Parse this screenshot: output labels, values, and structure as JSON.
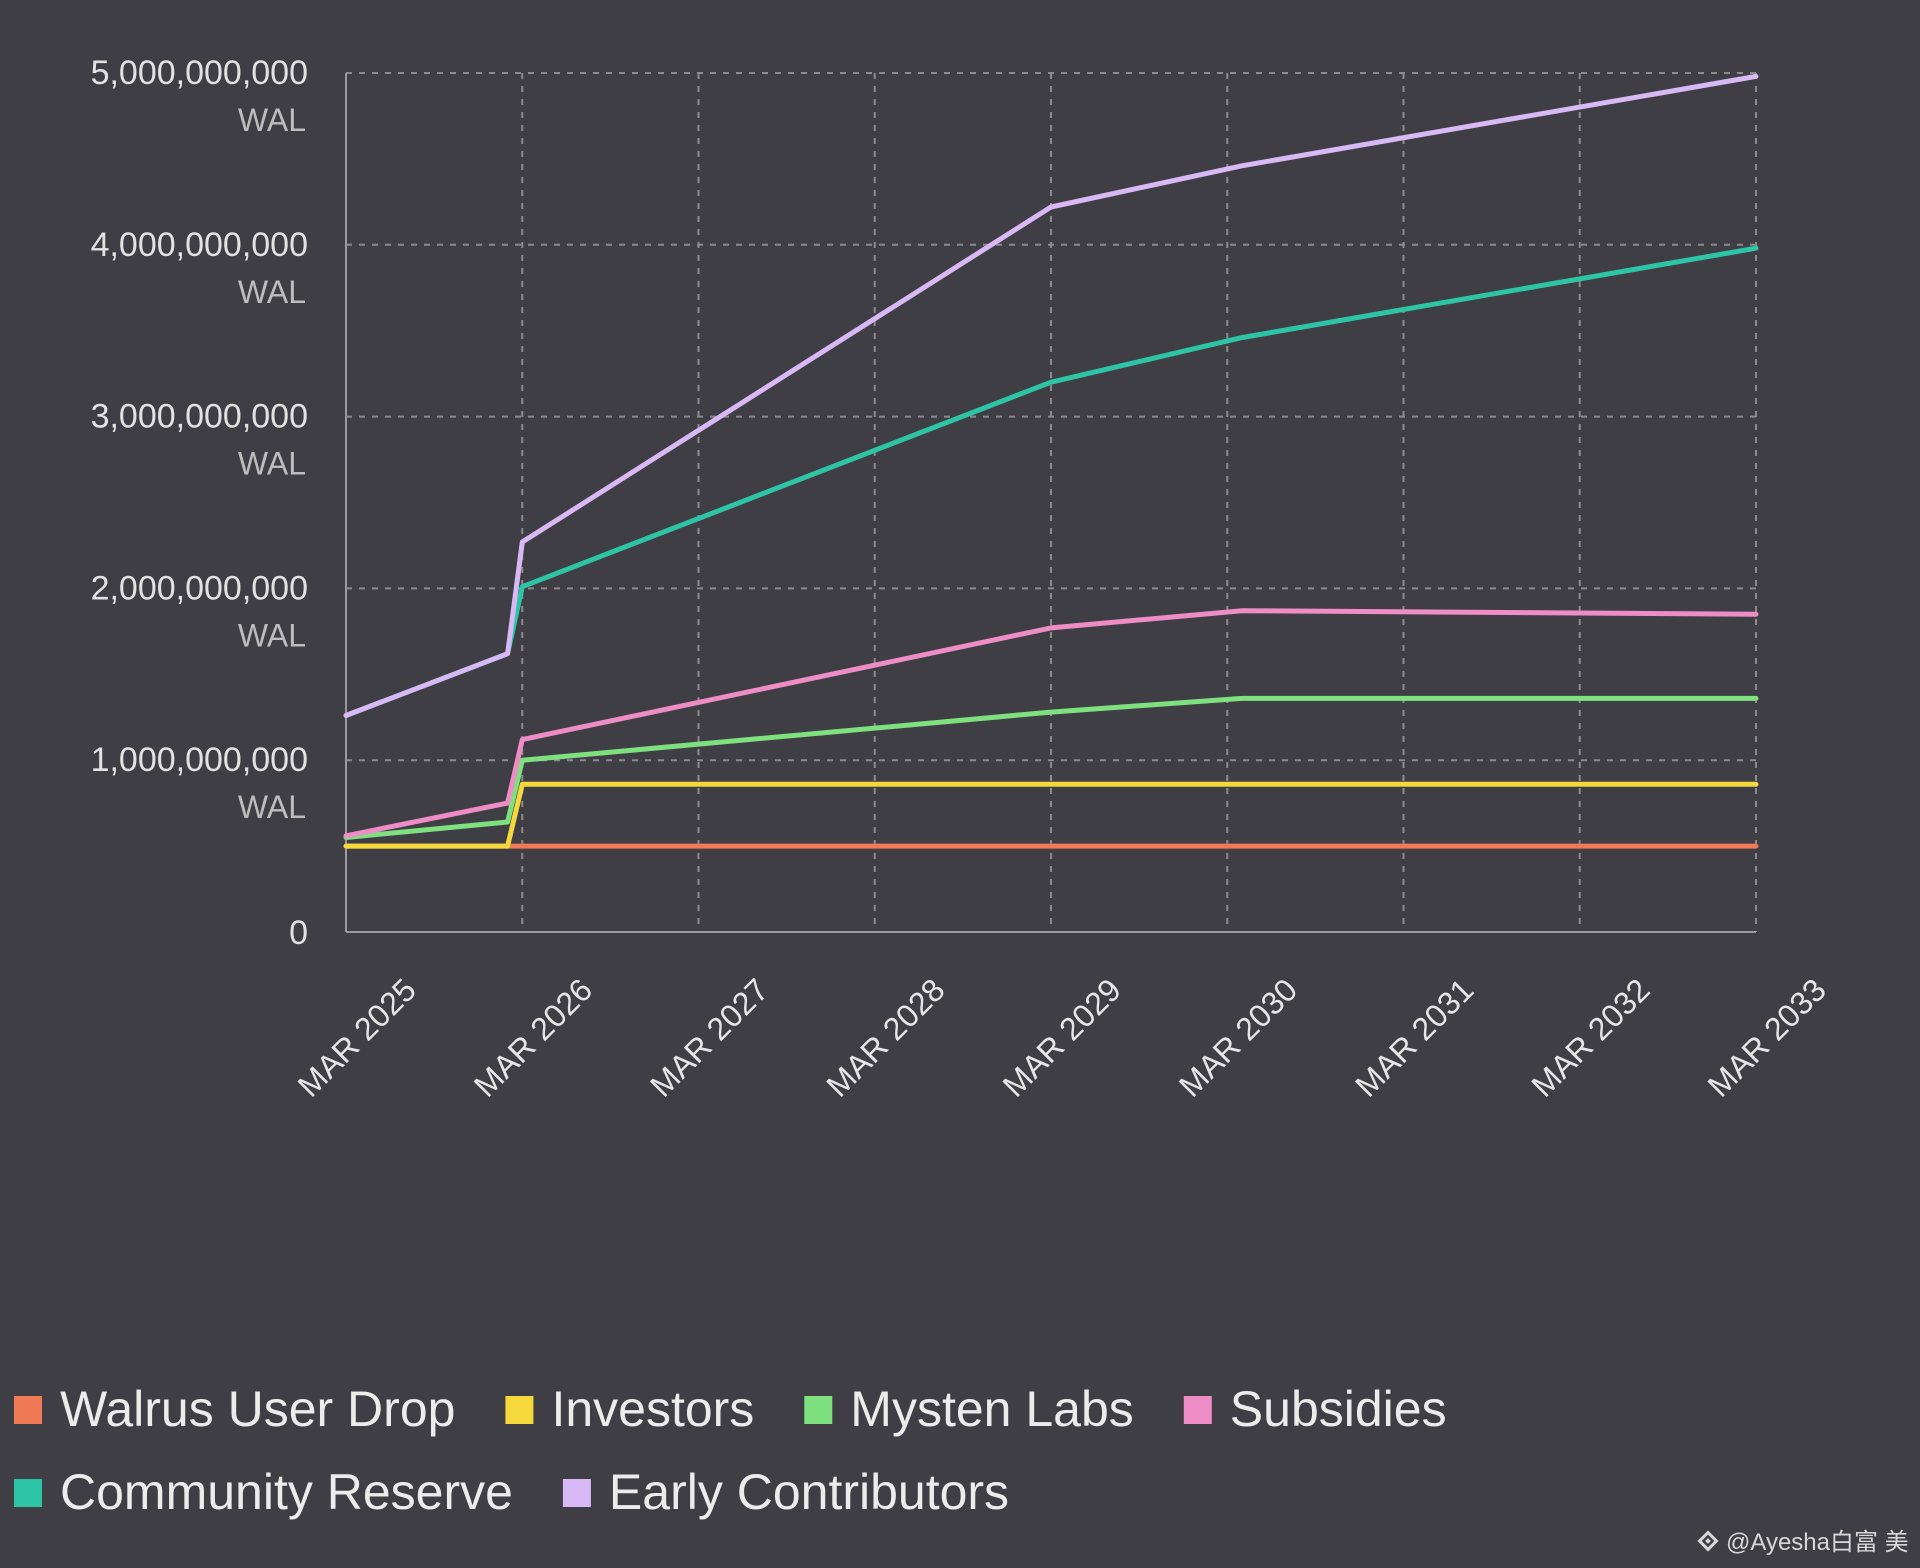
{
  "chart_data": {
    "type": "line",
    "x_ticks": [
      "MAR 2025",
      "MAR 2026",
      "MAR 2027",
      "MAR 2028",
      "MAR 2029",
      "MAR 2030",
      "MAR 2031",
      "MAR 2032",
      "MAR 2033"
    ],
    "y_ticks": [
      {
        "value": 0,
        "label": "0",
        "unit": ""
      },
      {
        "value": 1000000000,
        "label": "1,000,000,000",
        "unit": "WAL"
      },
      {
        "value": 2000000000,
        "label": "2,000,000,000",
        "unit": "WAL"
      },
      {
        "value": 3000000000,
        "label": "3,000,000,000",
        "unit": "WAL"
      },
      {
        "value": 4000000000,
        "label": "4,000,000,000",
        "unit": "WAL"
      },
      {
        "value": 5000000000,
        "label": "5,000,000,000",
        "unit": "WAL"
      }
    ],
    "xlim": [
      "2025-03",
      "2033-03"
    ],
    "ylim": [
      0,
      5000000000
    ],
    "grid": true,
    "legend_position": "bottom-left",
    "series": [
      {
        "name": "Walrus User Drop",
        "color": "#f07a55",
        "points": [
          [
            "2025-03",
            500000000
          ],
          [
            "2033-03",
            500000000
          ]
        ]
      },
      {
        "name": "Investors",
        "color": "#f5d83c",
        "points": [
          [
            "2025-03",
            500000000
          ],
          [
            "2026-02",
            500000000
          ],
          [
            "2026-03",
            860000000
          ],
          [
            "2033-03",
            860000000
          ]
        ]
      },
      {
        "name": "Mysten Labs",
        "color": "#7fe07f",
        "points": [
          [
            "2025-03",
            550000000
          ],
          [
            "2026-02",
            640000000
          ],
          [
            "2026-03",
            1000000000
          ],
          [
            "2029-03",
            1280000000
          ],
          [
            "2030-04",
            1360000000
          ],
          [
            "2033-03",
            1360000000
          ]
        ]
      },
      {
        "name": "Subsidies",
        "color": "#ee8cc6",
        "points": [
          [
            "2025-03",
            560000000
          ],
          [
            "2026-02",
            750000000
          ],
          [
            "2026-03",
            1120000000
          ],
          [
            "2029-03",
            1770000000
          ],
          [
            "2030-04",
            1870000000
          ],
          [
            "2033-03",
            1850000000
          ]
        ]
      },
      {
        "name": "Community Reserve",
        "color": "#2ec4a6",
        "points": [
          [
            "2025-03",
            1260000000
          ],
          [
            "2026-02",
            1620000000
          ],
          [
            "2026-03",
            2010000000
          ],
          [
            "2029-03",
            3200000000
          ],
          [
            "2030-04",
            3460000000
          ],
          [
            "2033-03",
            3980000000
          ]
        ]
      },
      {
        "name": "Early Contributors",
        "color": "#d8b8f5",
        "points": [
          [
            "2025-03",
            1260000000
          ],
          [
            "2026-02",
            1620000000
          ],
          [
            "2026-03",
            2270000000
          ],
          [
            "2029-03",
            4220000000
          ],
          [
            "2030-04",
            4460000000
          ],
          [
            "2033-03",
            4980000000
          ]
        ]
      }
    ]
  },
  "watermark": "@Ayesha白富 美",
  "watermark_icon": "binance-logo-icon"
}
